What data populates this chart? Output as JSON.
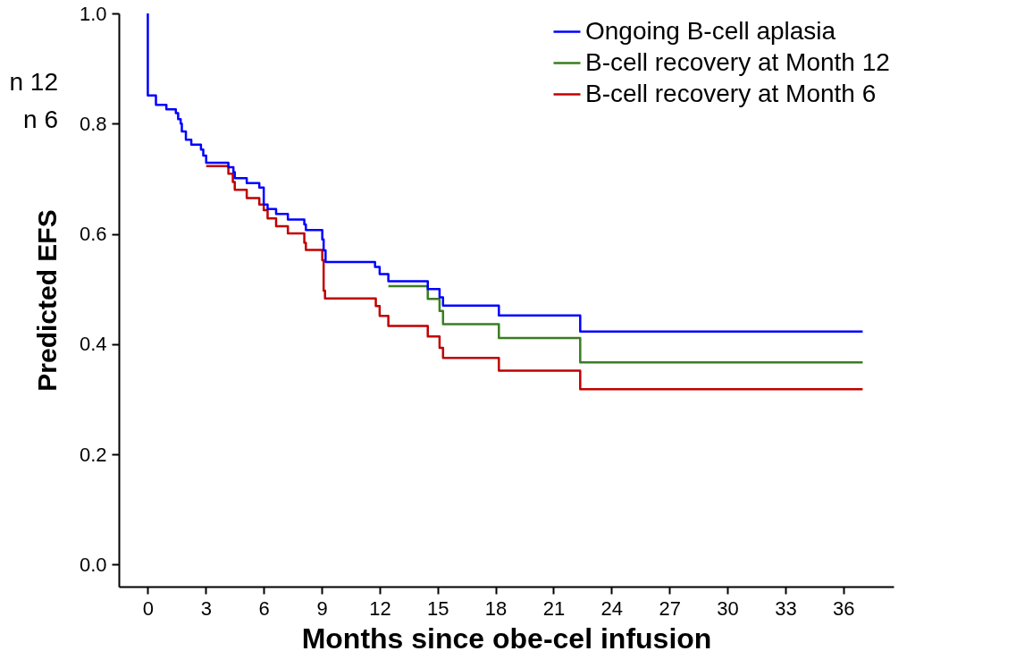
{
  "chart_data": {
    "type": "step",
    "xlabel": "Months since obe-cel infusion",
    "ylabel": "Predicted EFS",
    "xlim": [
      -1.5,
      38.6
    ],
    "ylim": [
      -0.04,
      1.0
    ],
    "xticks": [
      0,
      3,
      6,
      9,
      12,
      15,
      18,
      21,
      24,
      27,
      30,
      33,
      36
    ],
    "yticks": [
      {
        "value": 0,
        "label": "0.0"
      },
      0.2,
      0.4,
      0.6,
      0.8,
      {
        "value": 1,
        "label": "1.0"
      }
    ],
    "grid": false,
    "legend": "top right",
    "marker": "none",
    "line_style": "solid",
    "annotations": [
      "n 12",
      "n 6"
    ],
    "series": [
      {
        "name": "Ongoing B-cell aplasia",
        "color": "#0000ff",
        "x": [
          0,
          0,
          0.42,
          0.96,
          1.45,
          1.57,
          1.7,
          1.76,
          1.97,
          2.25,
          2.75,
          2.87,
          3.02,
          4.17,
          4.43,
          4.5,
          5.12,
          5.77,
          6.0,
          6.2,
          6.64,
          7.25,
          8.1,
          8.18,
          9.03,
          9.1,
          9.2,
          11.76,
          12.0,
          12.45,
          14.49,
          15.1,
          15.28,
          18.17,
          22.38,
          37.0
        ],
        "values": [
          1.0,
          0.851,
          0.834,
          0.826,
          0.819,
          0.808,
          0.8,
          0.786,
          0.771,
          0.762,
          0.753,
          0.742,
          0.729,
          0.721,
          0.712,
          0.701,
          0.692,
          0.684,
          0.653,
          0.645,
          0.636,
          0.626,
          0.617,
          0.607,
          0.59,
          0.57,
          0.549,
          0.54,
          0.527,
          0.514,
          0.5,
          0.485,
          0.47,
          0.452,
          0.423,
          0.423
        ]
      },
      {
        "name": "B-cell recovery at Month 12",
        "color": "#3a7d22",
        "x": [
          12.45,
          14.49,
          15.1,
          15.28,
          18.17,
          22.38,
          37.0
        ],
        "values": [
          0.505,
          0.482,
          0.46,
          0.436,
          0.411,
          0.367,
          0.367
        ]
      },
      {
        "name": "B-cell recovery at Month 6",
        "color": "#c00000",
        "x": [
          3.02,
          4.17,
          4.4,
          4.5,
          5.12,
          5.77,
          6.0,
          6.2,
          6.64,
          7.25,
          8.1,
          8.18,
          9.03,
          9.1,
          9.17,
          11.8,
          12.0,
          12.45,
          14.49,
          15.1,
          15.28,
          18.17,
          22.38,
          37.0
        ],
        "values": [
          0.723,
          0.709,
          0.694,
          0.68,
          0.665,
          0.653,
          0.643,
          0.628,
          0.614,
          0.601,
          0.584,
          0.571,
          0.552,
          0.497,
          0.483,
          0.469,
          0.451,
          0.433,
          0.414,
          0.393,
          0.375,
          0.352,
          0.318,
          0.318
        ]
      }
    ]
  }
}
